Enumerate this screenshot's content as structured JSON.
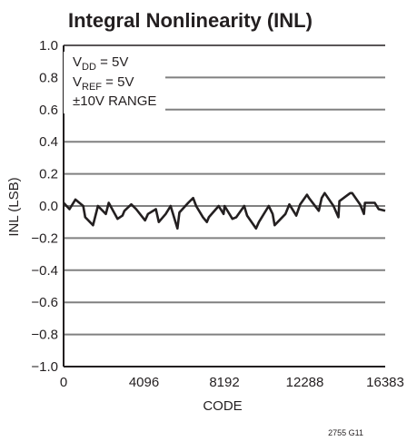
{
  "chart_data": {
    "type": "line",
    "title": "Integral Nonlinearity (INL)",
    "xlabel": "CODE",
    "ylabel": "INL (LSB)",
    "xlim": [
      0,
      16383
    ],
    "ylim": [
      -1.0,
      1.0
    ],
    "x_ticks": [
      0,
      4096,
      8192,
      12288,
      16383
    ],
    "x_tick_labels": [
      "0",
      "4096",
      "8192",
      "12288",
      "16383"
    ],
    "y_ticks": [
      1.0,
      0.8,
      0.6,
      0.4,
      0.2,
      0.0,
      -0.2,
      -0.4,
      -0.6,
      -0.8,
      -1.0
    ],
    "y_tick_labels": [
      "1.0",
      "0.8",
      "0.6",
      "0.4",
      "0.2",
      "0.0",
      "−0.2",
      "−0.4",
      "−0.6",
      "−0.8",
      "−1.0"
    ],
    "grid": true,
    "conditions": {
      "vdd": {
        "main": "V",
        "sub": "DD",
        "rest": " = 5V"
      },
      "vref": {
        "main": "V",
        "sub": "REF",
        "rest": " = 5V"
      },
      "range": "±10V RANGE"
    },
    "series": [
      {
        "x": [
          0,
          300,
          600,
          1000,
          1100,
          1500,
          1750,
          2150,
          2300,
          2750,
          3000,
          3100,
          3450,
          3700,
          4150,
          4300,
          4700,
          4850,
          5200,
          5450,
          5800,
          5900,
          6350,
          6600,
          6750,
          7100,
          7300,
          7400,
          7900,
          8150,
          8200,
          8600,
          8800,
          9200,
          9350,
          9800,
          9950,
          10100,
          10450,
          10650,
          10750,
          11300,
          11500,
          11850,
          12050,
          12400,
          12500,
          13000,
          13150,
          13300,
          13750,
          14000,
          14050,
          14600,
          14700,
          15100,
          15300,
          15350,
          15850,
          16050,
          16383
        ],
        "y": [
          0.02,
          -0.02,
          0.04,
          0.0,
          -0.07,
          -0.12,
          0.0,
          -0.05,
          0.02,
          -0.08,
          -0.06,
          -0.03,
          0.01,
          -0.02,
          -0.09,
          -0.05,
          -0.02,
          -0.1,
          -0.05,
          0.0,
          -0.14,
          -0.04,
          0.02,
          0.05,
          0.0,
          -0.07,
          -0.1,
          -0.07,
          0.0,
          -0.05,
          0.0,
          -0.08,
          -0.07,
          0.0,
          -0.06,
          -0.14,
          -0.1,
          -0.07,
          0.0,
          -0.05,
          -0.12,
          -0.05,
          0.01,
          -0.06,
          0.01,
          0.07,
          0.05,
          -0.03,
          0.05,
          0.08,
          0.0,
          -0.07,
          0.03,
          0.08,
          0.08,
          0.01,
          -0.05,
          0.02,
          0.02,
          -0.02,
          -0.03
        ]
      }
    ]
  },
  "figure_id": "2755 G11",
  "colors": {
    "text": "#231f20",
    "grid": "#808080",
    "axis": "#231f20",
    "series": "#231f20"
  }
}
